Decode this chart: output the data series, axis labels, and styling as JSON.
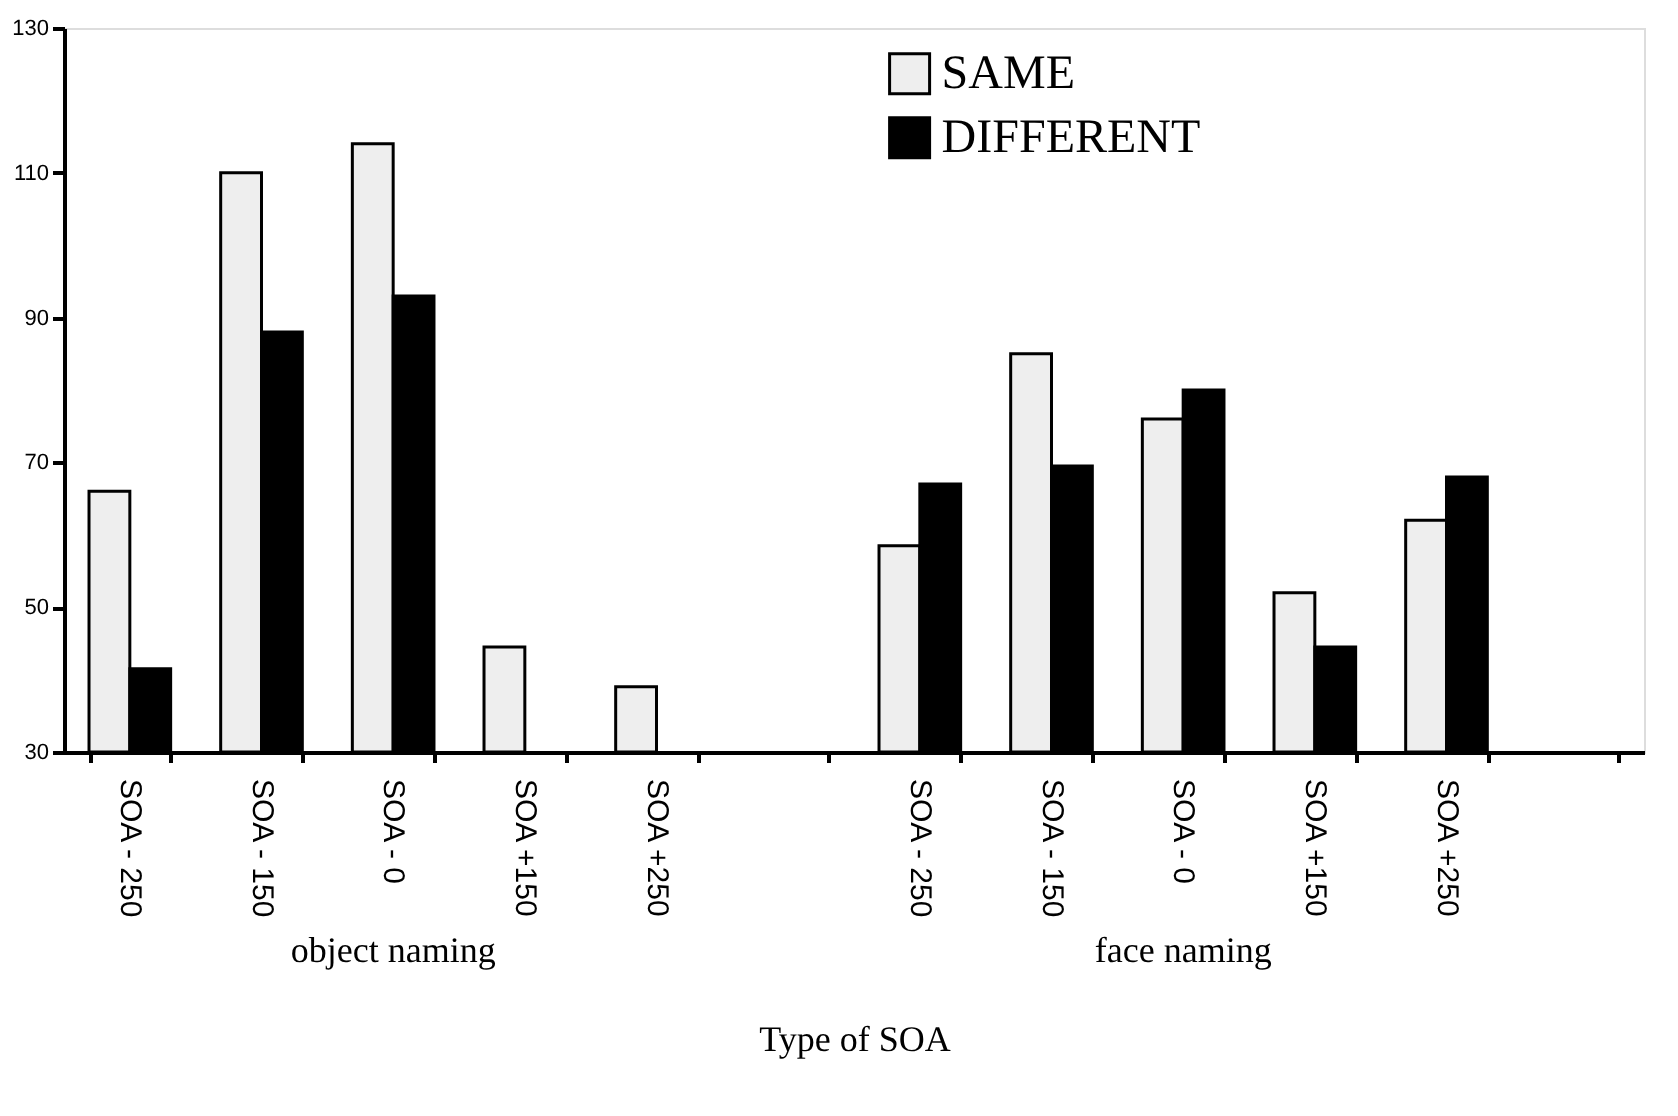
{
  "chart_data": {
    "type": "bar",
    "xlabel": "Type of SOA",
    "categories": [
      "SOA - 250",
      "SOA - 150",
      "SOA - 0",
      "SOA +150",
      "SOA +250",
      null,
      "SOA - 250",
      "SOA - 150",
      "SOA - 0",
      "SOA +150",
      "SOA +250",
      null
    ],
    "series": [
      {
        "name": "SAME",
        "color": "#eeeeee",
        "values": [
          66,
          110,
          114,
          44.5,
          39,
          null,
          58.5,
          85,
          76,
          52,
          62,
          null
        ]
      },
      {
        "name": "DIFFERENT",
        "color": "#000000",
        "values": [
          41.5,
          88,
          93,
          null,
          null,
          null,
          67,
          69.5,
          80,
          44.5,
          68,
          null
        ]
      }
    ],
    "ylim": [
      30,
      130
    ],
    "yticks": [
      30,
      50,
      70,
      90,
      110,
      130
    ],
    "annotations": [
      "object naming",
      "face naming"
    ],
    "grid": false,
    "legend": "top right"
  }
}
